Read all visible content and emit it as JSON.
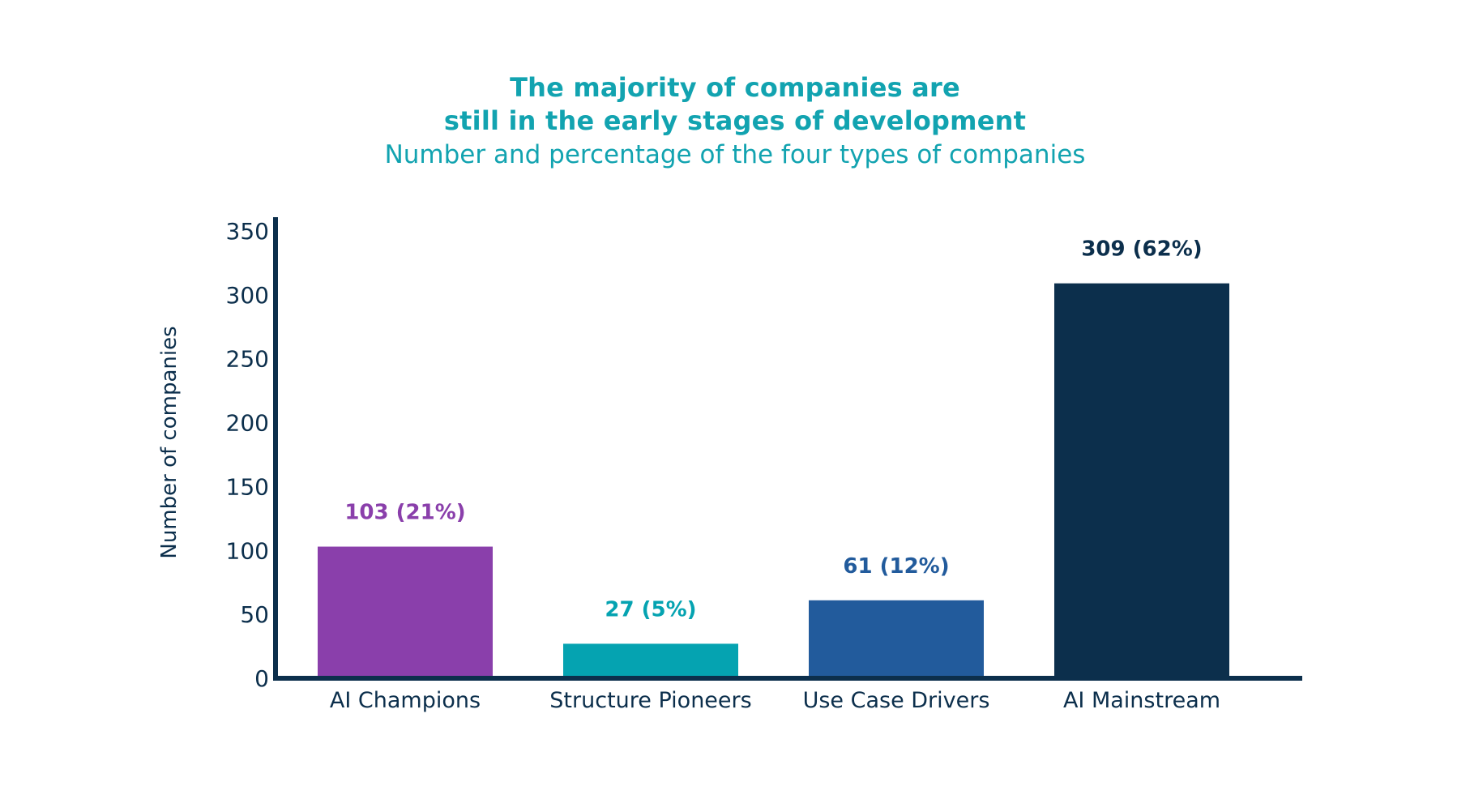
{
  "chart_data": {
    "type": "bar",
    "title_lines": [
      "The majority of companies are",
      "still in the early stages of development"
    ],
    "subtitle": "Number and percentage of the four types of companies",
    "xlabel": "",
    "ylabel": "Number of companies",
    "ylim": [
      0,
      350
    ],
    "yticks": [
      0,
      50,
      100,
      150,
      200,
      250,
      300,
      350
    ],
    "grid": false,
    "categories": [
      "AI Champions",
      "Structure Pioneers",
      "Use Case Drivers",
      "AI Mainstream"
    ],
    "values": [
      103,
      27,
      61,
      309
    ],
    "data_labels": [
      "103 (21%)",
      "27 (5%)",
      "61 (12%)",
      "309 (62%)"
    ],
    "colors": [
      "#8a3fab",
      "#05a3b1",
      "#225b9c",
      "#0c2f4c"
    ],
    "axis_color": "#0c2f4c",
    "text_color": "#0c2f4c",
    "title_color": "#12a3b0"
  }
}
